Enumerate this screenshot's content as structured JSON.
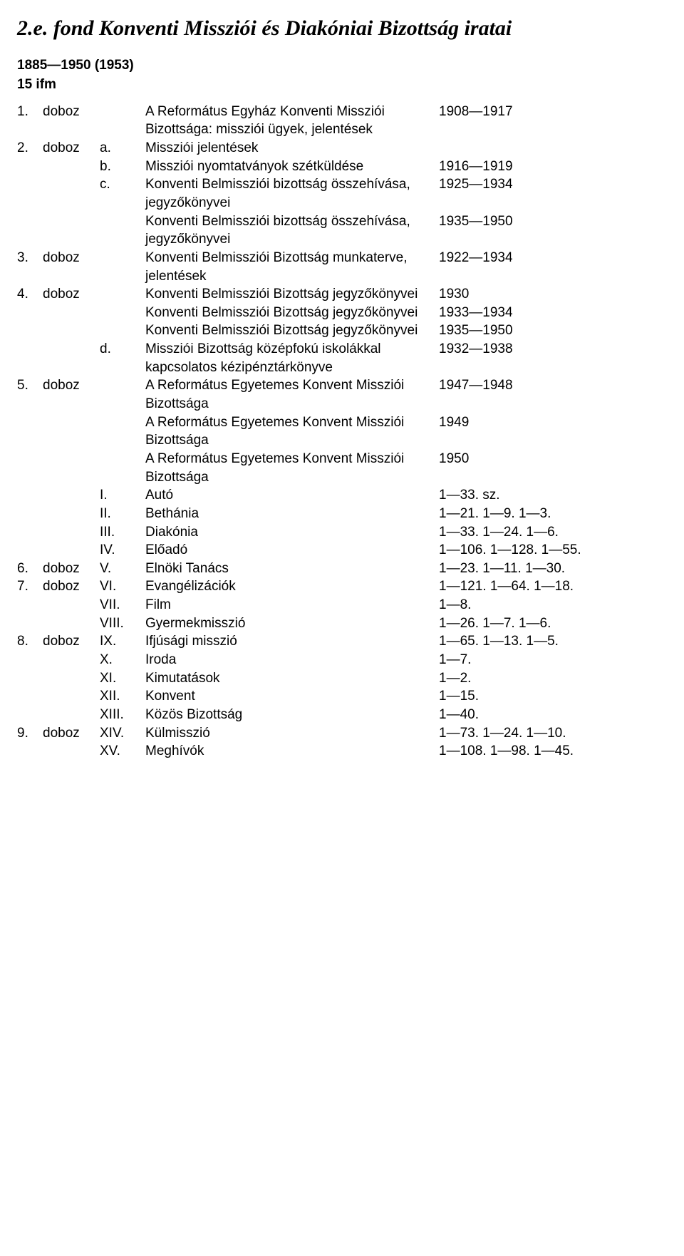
{
  "title": "2.e. fond Konventi Missziói és Diakóniai Bizottság iratai",
  "sub1": "1885—1950 (1953)",
  "sub2": "15 ifm",
  "rows": [
    {
      "n": "1.",
      "u": "doboz",
      "s": "",
      "d": "A Református Egyház Konventi Missziói Bizottsága: missziói ügyek, jelentések",
      "v": "1908—1917"
    },
    {
      "n": "2.",
      "u": "doboz",
      "s": "a.",
      "d": "Missziói jelentések",
      "v": ""
    },
    {
      "n": "",
      "u": "",
      "s": "b.",
      "d": "Missziói nyomtatványok szétküldése",
      "v": "1916—1919"
    },
    {
      "n": "",
      "u": "",
      "s": "c.",
      "d": "Konventi Belmissziói bizottság összehívása, jegyzőkönyvei",
      "v": "1925—1934"
    },
    {
      "n": "",
      "u": "",
      "s": "",
      "d": "Konventi Belmissziói bizottság összehívása, jegyzőkönyvei",
      "v": "1935—1950"
    },
    {
      "n": "3.",
      "u": "doboz",
      "s": "",
      "d": "Konventi Belmissziói Bizottság munkaterve, jelentések",
      "v": "1922—1934"
    },
    {
      "n": "4.",
      "u": "doboz",
      "s": "",
      "d": "Konventi Belmissziói Bizottság jegyzőkönyvei",
      "v": "1930"
    },
    {
      "n": "",
      "u": "",
      "s": "",
      "d": "Konventi Belmissziói Bizottság jegyzőkönyvei",
      "v": "1933—1934"
    },
    {
      "n": "",
      "u": "",
      "s": "",
      "d": "Konventi Belmissziói Bizottság jegyzőkönyvei",
      "v": "1935—1950"
    },
    {
      "n": "",
      "u": "",
      "s": "d.",
      "d": "Missziói Bizottság középfokú iskolákkal kapcsolatos kézipénztárkönyve",
      "v": "1932—1938"
    },
    {
      "n": "5.",
      "u": "doboz",
      "s": "",
      "d": "A Református Egyetemes Konvent Missziói Bizottsága",
      "v": "1947—1948"
    },
    {
      "n": "",
      "u": "",
      "s": "",
      "d": "A Református Egyetemes Konvent Missziói Bizottsága",
      "v": "1949"
    },
    {
      "n": "",
      "u": "",
      "s": "",
      "d": "A Református Egyetemes Konvent Missziói Bizottsága",
      "v": "1950"
    },
    {
      "n": "",
      "u": "",
      "s": "I.",
      "d": "Autó",
      "v": "1—33. sz."
    },
    {
      "n": "",
      "u": "",
      "s": "II.",
      "d": "Bethánia",
      "v": "1—21. 1—9. 1—3."
    },
    {
      "n": "",
      "u": "",
      "s": "III.",
      "d": "Diakónia",
      "v": "1—33. 1—24. 1—6."
    },
    {
      "n": "",
      "u": "",
      "s": "IV.",
      "d": "Előadó",
      "v": "1—106. 1—128. 1—55."
    },
    {
      "n": "6.",
      "u": "doboz",
      "s": "V.",
      "d": "Elnöki Tanács",
      "v": "1—23. 1—11. 1—30."
    },
    {
      "n": "7.",
      "u": "doboz",
      "s": "VI.",
      "d": "Evangélizációk",
      "v": "1—121. 1—64. 1—18."
    },
    {
      "n": "",
      "u": "",
      "s": "VII.",
      "d": "Film",
      "v": "1—8."
    },
    {
      "n": "",
      "u": "",
      "s": "VIII.",
      "d": "Gyermekmisszió",
      "v": "1—26. 1—7. 1—6."
    },
    {
      "n": "8.",
      "u": "doboz",
      "s": "IX.",
      "d": "Ifjúsági misszió",
      "v": "1—65. 1—13. 1—5."
    },
    {
      "n": "",
      "u": "",
      "s": "X.",
      "d": "Iroda",
      "v": "1—7."
    },
    {
      "n": "",
      "u": "",
      "s": "XI.",
      "d": "Kimutatások",
      "v": "1—2."
    },
    {
      "n": "",
      "u": "",
      "s": "XII.",
      "d": "Konvent",
      "v": "1—15."
    },
    {
      "n": "",
      "u": "",
      "s": "XIII.",
      "d": "Közös Bizottság",
      "v": "1—40."
    },
    {
      "n": "9.",
      "u": "doboz",
      "s": "XIV.",
      "d": "Külmisszió",
      "v": "1—73. 1—24. 1—10."
    },
    {
      "n": "",
      "u": "",
      "s": "XV.",
      "d": "Meghívók",
      "v": "1—108. 1—98. 1—45."
    }
  ]
}
